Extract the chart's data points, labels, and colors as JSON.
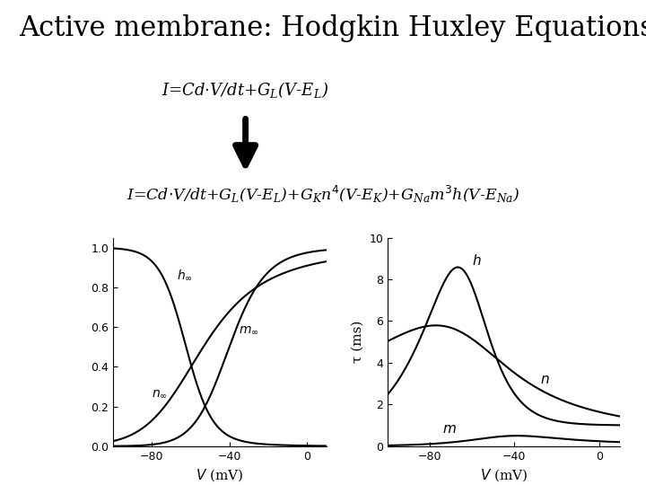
{
  "title": "Active membrane: Hodgkin Huxley Equations",
  "background_color": "#ffffff",
  "title_fontsize": 22,
  "eq_fontsize": 13,
  "V_range": [
    -100,
    10
  ],
  "ylim1": [
    0,
    1.0
  ],
  "ylim2": [
    0,
    10
  ],
  "xlabel": "V (mV)",
  "ylabel2": "τ (ms)"
}
